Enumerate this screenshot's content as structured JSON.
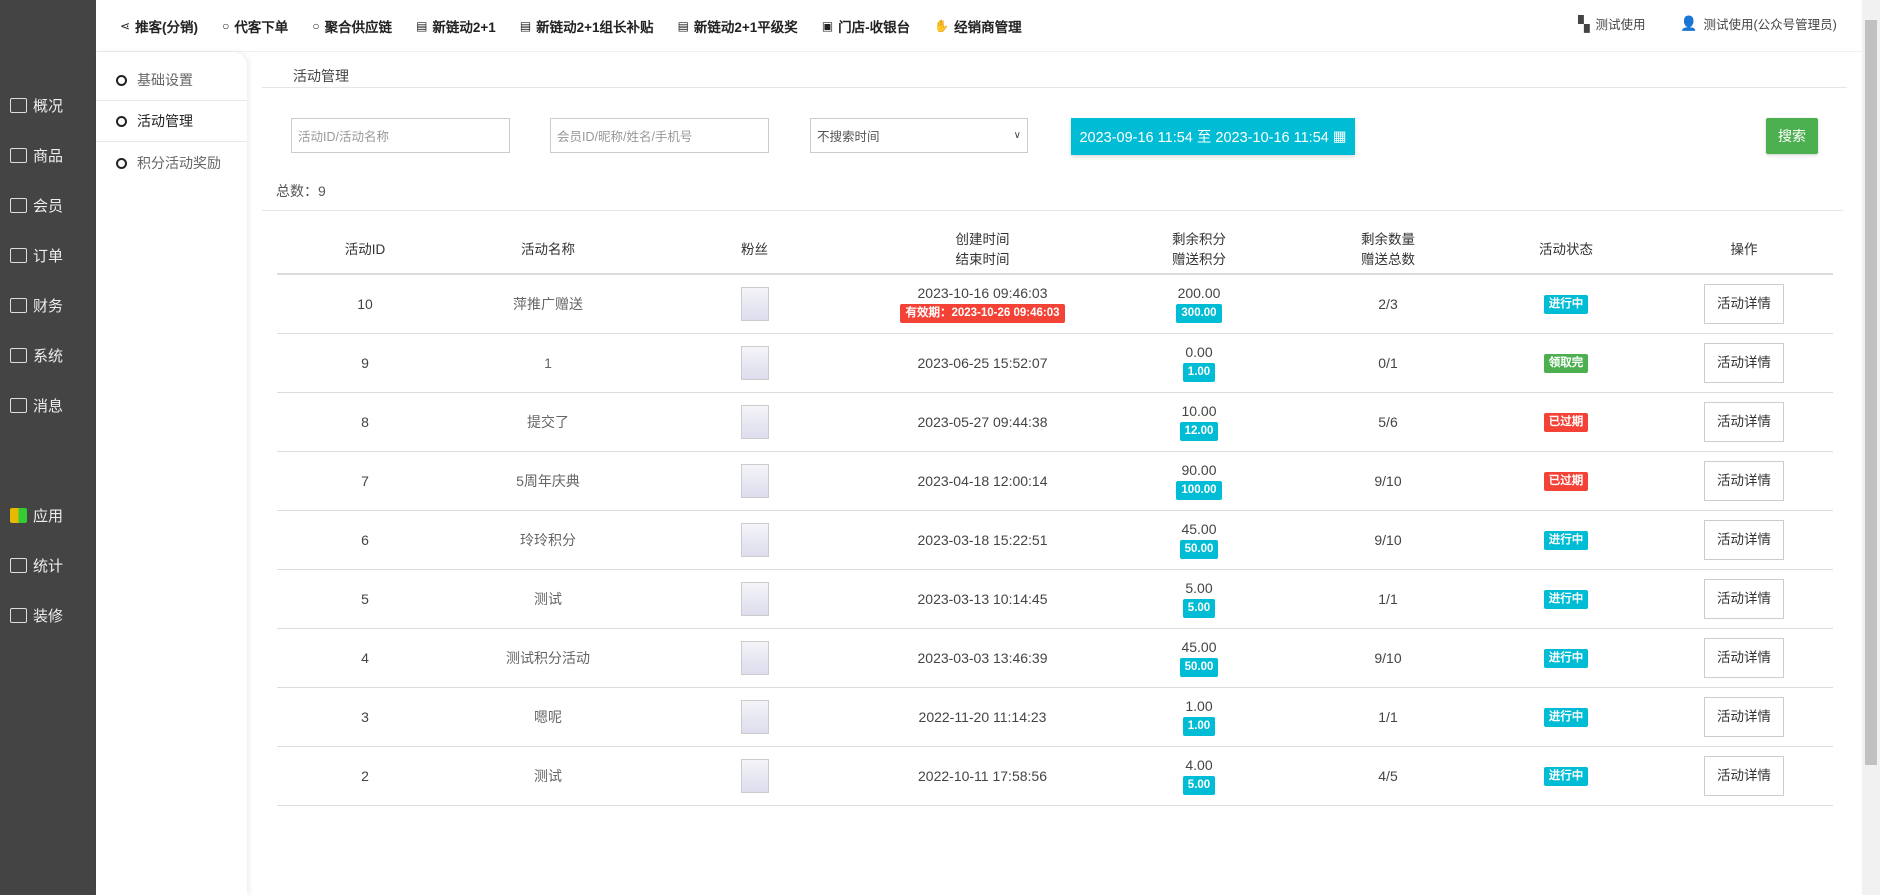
{
  "sidebar": {
    "items": [
      {
        "label": "概况",
        "icon": "chart-monitor-icon"
      },
      {
        "label": "商品",
        "icon": "shop-bag-icon"
      },
      {
        "label": "会员",
        "icon": "users-icon"
      },
      {
        "label": "订单",
        "icon": "cart-icon"
      },
      {
        "label": "财务",
        "icon": "yen-icon"
      },
      {
        "label": "系统",
        "icon": "gear-icon"
      },
      {
        "label": "消息",
        "icon": "chat-icon"
      },
      {
        "label": "应用",
        "icon": "apps-icon"
      },
      {
        "label": "统计",
        "icon": "bar-chart-icon"
      },
      {
        "label": "装修",
        "icon": "paint-roller-icon"
      }
    ]
  },
  "topnav": {
    "items": [
      {
        "label": "推客(分销)",
        "icon": "share-icon"
      },
      {
        "label": "代客下单",
        "icon": "circle-icon"
      },
      {
        "label": "聚合供应链",
        "icon": "circle-icon"
      },
      {
        "label": "新链动2+1",
        "icon": "doc-icon"
      },
      {
        "label": "新链动2+1组长补贴",
        "icon": "doc-icon"
      },
      {
        "label": "新链动2+1平级奖",
        "icon": "doc-icon"
      },
      {
        "label": "门店-收银台",
        "icon": "cash-icon"
      },
      {
        "label": "经销商管理",
        "icon": "handshake-icon"
      }
    ],
    "store": "测试使用",
    "user": "测试使用(公众号管理员)"
  },
  "submenu": {
    "items": [
      {
        "label": "基础设置"
      },
      {
        "label": "活动管理",
        "active": true
      },
      {
        "label": "积分活动奖励"
      }
    ]
  },
  "breadcrumb": "活动管理",
  "filters": {
    "activity_placeholder": "活动ID/活动名称",
    "member_placeholder": "会员ID/昵称/姓名/手机号",
    "time_select": "不搜索时间",
    "date_range": "2023-09-16 11:54 至 2023-10-16 11:54",
    "search_label": "搜索"
  },
  "total": "总数：9",
  "colors": {
    "primary": "#00bcd4",
    "success": "#4caf50",
    "danger": "#f44336",
    "sidebar": "#444444"
  },
  "table": {
    "headers": {
      "id": "活动ID",
      "name": "活动名称",
      "fans": "粉丝",
      "created": "创建时间",
      "ended": "结束时间",
      "remain_points": "剩余积分",
      "gift_points": "赠送积分",
      "remain_qty": "剩余数量",
      "gift_total": "赠送总数",
      "status": "活动状态",
      "action": "操作"
    },
    "rows": [
      {
        "id": "10",
        "name": "萍推广赠送",
        "created": "2023-10-16 09:46:03",
        "expiry": "有效期：2023-10-26 09:46:03",
        "remain": "200.00",
        "gift": "300.00",
        "qty": "2/3",
        "status": "进行中",
        "status_color": "#00bcd4",
        "action": "活动详情"
      },
      {
        "id": "9",
        "name": "1",
        "created": "2023-06-25 15:52:07",
        "remain": "0.00",
        "gift": "1.00",
        "qty": "0/1",
        "status": "领取完",
        "status_color": "#4caf50",
        "action": "活动详情"
      },
      {
        "id": "8",
        "name": "提交了",
        "created": "2023-05-27 09:44:38",
        "remain": "10.00",
        "gift": "12.00",
        "qty": "5/6",
        "status": "已过期",
        "status_color": "#f44336",
        "action": "活动详情"
      },
      {
        "id": "7",
        "name": "5周年庆典",
        "created": "2023-04-18 12:00:14",
        "remain": "90.00",
        "gift": "100.00",
        "qty": "9/10",
        "status": "已过期",
        "status_color": "#f44336",
        "action": "活动详情"
      },
      {
        "id": "6",
        "name": "玲玲积分",
        "created": "2023-03-18 15:22:51",
        "remain": "45.00",
        "gift": "50.00",
        "qty": "9/10",
        "status": "进行中",
        "status_color": "#00bcd4",
        "action": "活动详情"
      },
      {
        "id": "5",
        "name": "测试",
        "created": "2023-03-13 10:14:45",
        "remain": "5.00",
        "gift": "5.00",
        "qty": "1/1",
        "status": "进行中",
        "status_color": "#00bcd4",
        "action": "活动详情"
      },
      {
        "id": "4",
        "name": "测试积分活动",
        "created": "2023-03-03 13:46:39",
        "remain": "45.00",
        "gift": "50.00",
        "qty": "9/10",
        "status": "进行中",
        "status_color": "#00bcd4",
        "action": "活动详情"
      },
      {
        "id": "3",
        "name": "嗯呢",
        "created": "2022-11-20 11:14:23",
        "remain": "1.00",
        "gift": "1.00",
        "qty": "1/1",
        "status": "进行中",
        "status_color": "#00bcd4",
        "action": "活动详情"
      },
      {
        "id": "2",
        "name": "测试",
        "created": "2022-10-11 17:58:56",
        "remain": "4.00",
        "gift": "5.00",
        "qty": "4/5",
        "status": "进行中",
        "status_color": "#00bcd4",
        "action": "活动详情"
      }
    ]
  }
}
